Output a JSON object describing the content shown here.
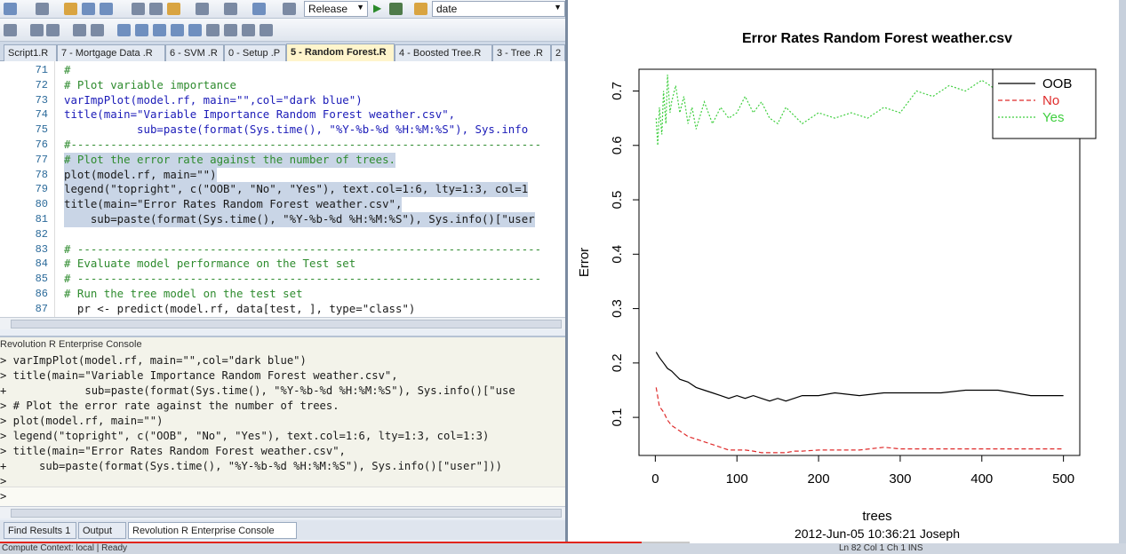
{
  "toolbar": {
    "config": "Release",
    "search": "date"
  },
  "tabs": [
    {
      "label": "Script1.R",
      "active": false
    },
    {
      "label": "7 - Mortgage Data .R",
      "active": false
    },
    {
      "label": "6 - SVM .R",
      "active": false
    },
    {
      "label": "0 - Setup .P",
      "active": false
    },
    {
      "label": "5 - Random Forest.R",
      "active": true
    },
    {
      "label": "4 - Boosted Tree.R",
      "active": false
    },
    {
      "label": "3 - Tree .R",
      "active": false
    },
    {
      "label": "2",
      "active": false
    }
  ],
  "editor": {
    "lines": [
      {
        "n": "71",
        "t": "#"
      },
      {
        "n": "72",
        "t": "# Plot variable importance"
      },
      {
        "n": "73",
        "t": "varImpPlot(model.rf, main=\"\",col=\"dark blue\")"
      },
      {
        "n": "74",
        "t": "title(main=\"Variable Importance Random Forest weather.csv\","
      },
      {
        "n": "75",
        "t": "           sub=paste(format(Sys.time(), \"%Y-%b-%d %H:%M:%S\"), Sys.info"
      },
      {
        "n": "76",
        "t": "#-----------------------------------------------------------------------"
      },
      {
        "n": "77",
        "t": "# Plot the error rate against the number of trees."
      },
      {
        "n": "78",
        "t": "plot(model.rf, main=\"\")"
      },
      {
        "n": "79",
        "t": "legend(\"topright\", c(\"OOB\", \"No\", \"Yes\"), text.col=1:6, lty=1:3, col=1"
      },
      {
        "n": "80",
        "t": "title(main=\"Error Rates Random Forest weather.csv\","
      },
      {
        "n": "81",
        "t": "    sub=paste(format(Sys.time(), \"%Y-%b-%d %H:%M:%S\"), Sys.info()[\"user"
      },
      {
        "n": "82",
        "t": ""
      },
      {
        "n": "83",
        "t": "# ----------------------------------------------------------------------"
      },
      {
        "n": "84",
        "t": "# Evaluate model performance on the Test set"
      },
      {
        "n": "85",
        "t": "# ----------------------------------------------------------------------"
      },
      {
        "n": "86",
        "t": "# Run the tree model on the test set"
      },
      {
        "n": "87",
        "t": "  pr <- predict(model.rf, data[test, ], type=\"class\")"
      }
    ]
  },
  "console": {
    "title": "Revolution R Enterprise Console",
    "lines": [
      "> varImpPlot(model.rf, main=\"\",col=\"dark blue\")",
      "> title(main=\"Variable Importance Random Forest weather.csv\",",
      "+            sub=paste(format(Sys.time(), \"%Y-%b-%d %H:%M:%S\"), Sys.info()[\"use",
      "> # Plot the error rate against the number of trees.",
      "> plot(model.rf, main=\"\")",
      "> legend(\"topright\", c(\"OOB\", \"No\", \"Yes\"), text.col=1:6, lty=1:3, col=1:3)",
      "> title(main=\"Error Rates Random Forest weather.csv\",",
      "+     sub=paste(format(Sys.time(), \"%Y-%b-%d %H:%M:%S\"), Sys.info()[\"user\"]))",
      ">",
      ">"
    ]
  },
  "bottom_tabs": [
    {
      "label": "Find Results 1",
      "active": false
    },
    {
      "label": "Output",
      "active": false
    },
    {
      "label": "Revolution R Enterprise Console",
      "active": true
    }
  ],
  "status": {
    "left": "Compute Context: local  | Ready",
    "right": "Ln 82        Col 1        Ch 1        INS"
  },
  "video_progress": 0.93,
  "colors": {
    "oob": "#000000",
    "no": "#df2b2b",
    "yes": "#3fcf3f"
  },
  "chart_data": {
    "type": "line",
    "title": "Error Rates Random Forest weather.csv",
    "subtitle": "2012-Jun-05 10:36:21 Joseph",
    "xlabel": "trees",
    "ylabel": "Error",
    "xlim": [
      0,
      500
    ],
    "ylim": [
      0.03,
      0.74
    ],
    "xticks": [
      0,
      100,
      200,
      300,
      400,
      500
    ],
    "yticks": [
      0.1,
      0.2,
      0.3,
      0.4,
      0.5,
      0.6,
      0.7
    ],
    "legend_position": "top-right",
    "series": [
      {
        "name": "OOB",
        "style": "solid",
        "x": [
          1,
          5,
          10,
          15,
          20,
          30,
          40,
          50,
          60,
          70,
          80,
          90,
          100,
          110,
          120,
          130,
          140,
          150,
          160,
          170,
          180,
          200,
          220,
          250,
          280,
          300,
          320,
          350,
          380,
          400,
          420,
          440,
          460,
          480,
          500
        ],
        "y": [
          0.22,
          0.21,
          0.2,
          0.19,
          0.185,
          0.17,
          0.165,
          0.155,
          0.15,
          0.145,
          0.14,
          0.135,
          0.14,
          0.135,
          0.14,
          0.135,
          0.13,
          0.135,
          0.13,
          0.135,
          0.14,
          0.14,
          0.145,
          0.14,
          0.145,
          0.145,
          0.145,
          0.145,
          0.15,
          0.15,
          0.15,
          0.145,
          0.14,
          0.14,
          0.14
        ]
      },
      {
        "name": "No",
        "style": "dashed",
        "x": [
          1,
          5,
          10,
          15,
          20,
          30,
          40,
          50,
          60,
          70,
          80,
          90,
          100,
          110,
          120,
          130,
          140,
          150,
          160,
          170,
          180,
          200,
          220,
          250,
          280,
          300,
          320,
          350,
          380,
          400,
          420,
          440,
          460,
          480,
          500
        ],
        "y": [
          0.155,
          0.12,
          0.11,
          0.095,
          0.085,
          0.075,
          0.065,
          0.06,
          0.055,
          0.05,
          0.045,
          0.04,
          0.04,
          0.04,
          0.038,
          0.035,
          0.035,
          0.035,
          0.035,
          0.038,
          0.038,
          0.04,
          0.04,
          0.04,
          0.045,
          0.042,
          0.042,
          0.042,
          0.042,
          0.042,
          0.042,
          0.042,
          0.042,
          0.042,
          0.042
        ]
      },
      {
        "name": "Yes",
        "style": "dotted",
        "x": [
          1,
          3,
          5,
          8,
          10,
          13,
          15,
          18,
          20,
          25,
          30,
          35,
          40,
          45,
          50,
          60,
          70,
          80,
          90,
          100,
          110,
          120,
          130,
          140,
          150,
          160,
          180,
          200,
          220,
          240,
          260,
          280,
          300,
          320,
          340,
          360,
          380,
          400,
          420,
          430,
          440,
          450
        ],
        "y": [
          0.65,
          0.6,
          0.67,
          0.62,
          0.7,
          0.64,
          0.73,
          0.66,
          0.68,
          0.71,
          0.66,
          0.69,
          0.64,
          0.67,
          0.63,
          0.68,
          0.64,
          0.67,
          0.65,
          0.66,
          0.69,
          0.66,
          0.68,
          0.65,
          0.64,
          0.67,
          0.64,
          0.66,
          0.65,
          0.66,
          0.65,
          0.67,
          0.66,
          0.7,
          0.69,
          0.71,
          0.7,
          0.72,
          0.7,
          0.73,
          0.71,
          0.67
        ]
      }
    ]
  }
}
